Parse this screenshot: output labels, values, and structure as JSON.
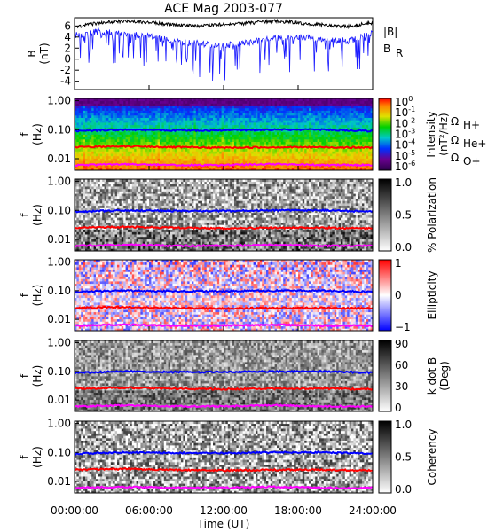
{
  "title": "ACE Mag 2003-077",
  "x_axis": {
    "label": "Time (UT)",
    "ticks": [
      "00:00:00",
      "06:00:00",
      "12:00:00",
      "18:00:00",
      "24:00:00"
    ],
    "range_hours": [
      0,
      24
    ]
  },
  "legend": {
    "B_total": {
      "label": "|B|",
      "color": "#000000"
    },
    "B_R": {
      "label": "B",
      "sub": "R",
      "color": "#1a1aff"
    },
    "gyro": [
      {
        "label": "Ω",
        "sub": "H+",
        "color": "#0000ff"
      },
      {
        "label": "Ω",
        "sub": "He+",
        "color": "#ff0000"
      },
      {
        "label": "Ω",
        "sub": "O+",
        "color": "#ff00ff"
      }
    ]
  },
  "panels": [
    {
      "id": "field",
      "ylabel": "B",
      "yunit": "(nT)",
      "yticks": [
        "6",
        "4",
        "2",
        "0",
        "-2",
        "-4"
      ]
    },
    {
      "id": "intensity",
      "ylabel": "f",
      "yunit": "(Hz)",
      "yticks": [
        "1.00",
        "0.10",
        "0.01"
      ],
      "cbar_label": "Intensity",
      "cbar_unit": "(nT²/Hz)",
      "cbar_ticks": [
        {
          "base": "10",
          "exp": "0"
        },
        {
          "base": "10",
          "exp": "-1"
        },
        {
          "base": "10",
          "exp": "-2"
        },
        {
          "base": "10",
          "exp": "-3"
        },
        {
          "base": "10",
          "exp": "-4"
        },
        {
          "base": "10",
          "exp": "-5"
        },
        {
          "base": "10",
          "exp": "-6"
        }
      ]
    },
    {
      "id": "polarization",
      "ylabel": "f",
      "yunit": "(Hz)",
      "yticks": [
        "1.00",
        "0.10",
        "0.01"
      ],
      "cbar_label": "% Polarization",
      "cbar_ticks": [
        "1.0",
        "0.5",
        "0.0"
      ]
    },
    {
      "id": "ellipticity",
      "ylabel": "f",
      "yunit": "(Hz)",
      "yticks": [
        "1.00",
        "0.10",
        "0.01"
      ],
      "cbar_label": "Ellipticity",
      "cbar_ticks": [
        "1",
        "0",
        "−1"
      ]
    },
    {
      "id": "kdotb",
      "ylabel": "f",
      "yunit": "(Hz)",
      "yticks": [
        "1.00",
        "0.10",
        "0.01"
      ],
      "cbar_label": "k dot B",
      "cbar_unit": "(Deg)",
      "cbar_ticks": [
        "90",
        "60",
        "30",
        "0"
      ]
    },
    {
      "id": "coherency",
      "ylabel": "f",
      "yunit": "(Hz)",
      "yticks": [
        "1.00",
        "0.10",
        "0.01"
      ],
      "cbar_label": "Coherency",
      "cbar_ticks": [
        "1.0",
        "0.5",
        "0.0"
      ]
    }
  ],
  "chart_data": {
    "type": "line",
    "title": "ACE Mag 2003-077",
    "xlabel": "Time (UT)",
    "x_tick_labels": [
      "00:00:00",
      "06:00:00",
      "12:00:00",
      "18:00:00",
      "24:00:00"
    ],
    "field_panel": {
      "ylabel": "B (nT)",
      "ylim": [
        -5.5,
        7.5
      ],
      "series": [
        {
          "name": "|B|",
          "x_hours": [
            0,
            2,
            4,
            6,
            8,
            10,
            12,
            14,
            16,
            18,
            20,
            22,
            24
          ],
          "values": [
            5.8,
            6.6,
            6.9,
            6.7,
            6.2,
            6.0,
            6.3,
            6.5,
            6.9,
            6.6,
            6.2,
            5.9,
            6.6
          ]
        },
        {
          "name": "B_R",
          "x_hours": [
            0,
            2,
            4,
            6,
            8,
            10,
            12,
            14,
            16,
            18,
            20,
            22,
            24
          ],
          "values": [
            4.3,
            5.0,
            4.6,
            4.2,
            3.2,
            2.8,
            2.5,
            3.0,
            3.7,
            4.0,
            3.6,
            3.3,
            4.7
          ]
        }
      ]
    },
    "gyrofrequency_lines_hz": {
      "x_hours": [
        0,
        4,
        8,
        12,
        16,
        20,
        24
      ],
      "H+": [
        0.09,
        0.1,
        0.095,
        0.095,
        0.1,
        0.1,
        0.09
      ],
      "He+": [
        0.025,
        0.027,
        0.025,
        0.024,
        0.025,
        0.025,
        0.024
      ],
      "O+": [
        0.006,
        0.0065,
        0.006,
        0.006,
        0.0065,
        0.006,
        0.006
      ]
    },
    "spectrogram_ylim_hz": [
      0.004,
      1.2
    ],
    "colorbars": {
      "intensity": {
        "label": "Intensity (nT²/Hz)",
        "log_range": [
          -6,
          0
        ]
      },
      "polarization": {
        "label": "% Polarization",
        "range": [
          0,
          1
        ]
      },
      "ellipticity": {
        "label": "Ellipticity",
        "range": [
          -1,
          1
        ]
      },
      "kdotb": {
        "label": "k dot B (Deg)",
        "range": [
          0,
          90
        ]
      },
      "coherency": {
        "label": "Coherency",
        "range": [
          0,
          1
        ]
      }
    }
  }
}
